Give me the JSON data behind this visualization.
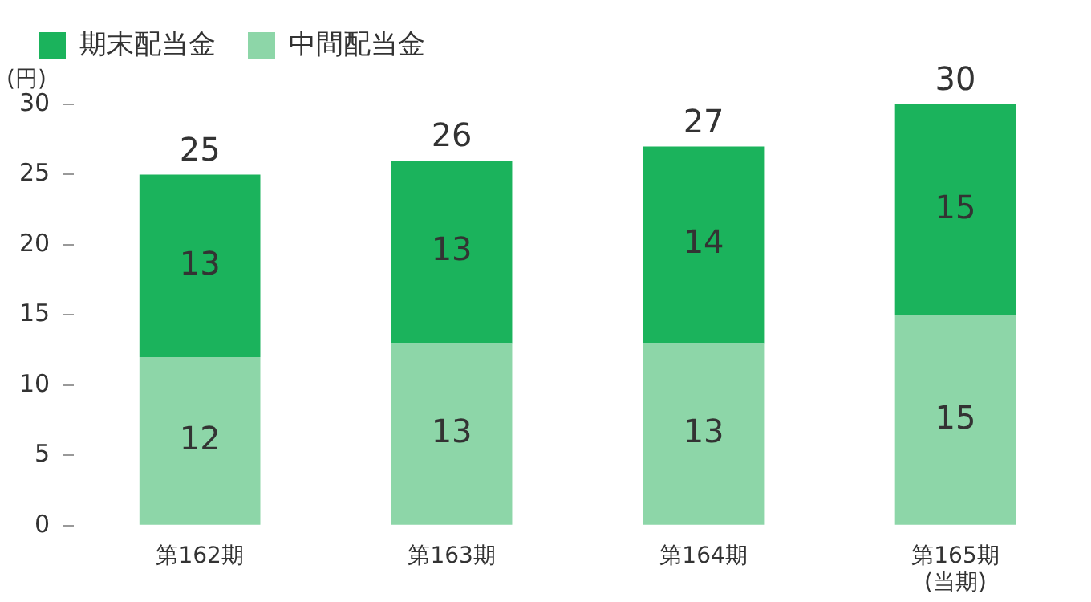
{
  "chart_data": {
    "type": "bar",
    "stacked": true,
    "ylabel": "(円)",
    "categories": [
      "第162期",
      "第163期",
      "第164期",
      "第165期\n(当期)"
    ],
    "series": [
      {
        "name": "中間配当金",
        "color": "#8dd6a8",
        "values": [
          12,
          13,
          13,
          15
        ]
      },
      {
        "name": "期末配当金",
        "color": "#1bb35c",
        "values": [
          13,
          13,
          14,
          15
        ]
      }
    ],
    "totals": [
      "25",
      "26",
      "27",
      "30"
    ],
    "data_labels": true,
    "ylim": [
      0,
      30
    ],
    "yticks": [
      0,
      5,
      10,
      15,
      20,
      25,
      30
    ],
    "grid": false,
    "legend": "top left"
  }
}
